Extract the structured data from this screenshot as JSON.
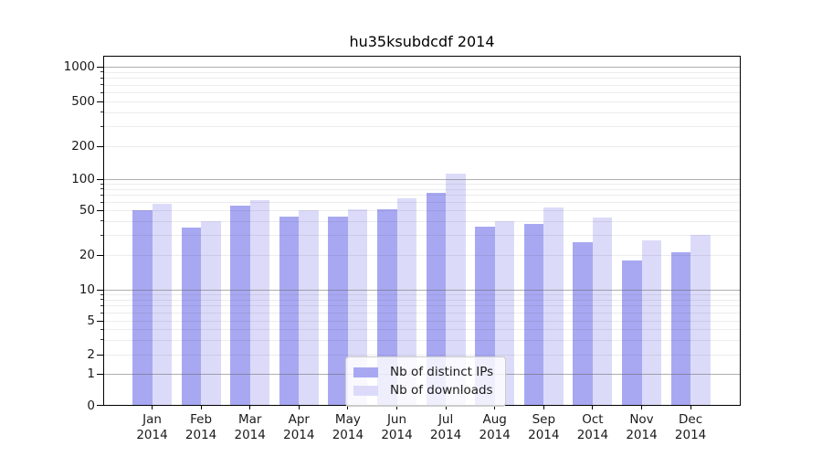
{
  "chart_data": {
    "type": "bar",
    "title": "hu35ksubdcdf 2014",
    "categories": [
      "Jan",
      "Feb",
      "Mar",
      "Apr",
      "May",
      "Jun",
      "Jul",
      "Aug",
      "Sep",
      "Oct",
      "Nov",
      "Dec"
    ],
    "x_year_label": "2014",
    "series": [
      {
        "name": "Nb of distinct IPs",
        "color": "#a8a8f2",
        "values": [
          50,
          35,
          55,
          44,
          44,
          51,
          74,
          36,
          38,
          26,
          18,
          21
        ]
      },
      {
        "name": "Nb of downloads",
        "color": "#dbdbf9",
        "values": [
          58,
          40,
          63,
          50,
          51,
          65,
          113,
          40,
          53,
          43,
          27,
          30
        ]
      }
    ],
    "yscale": "symlog",
    "ytick_labels": [
      0,
      1,
      2,
      5,
      10,
      20,
      50,
      100,
      200,
      500,
      1000
    ],
    "ylim": [
      0,
      1250
    ],
    "grid": "horizontal",
    "legend_position": "bottom-center",
    "colors": {
      "frame": "#000000",
      "grid_major": "#b4b4b4",
      "grid_minor": "#e9e9e9",
      "background": "#ffffff",
      "text": "#1a1a1a"
    }
  }
}
